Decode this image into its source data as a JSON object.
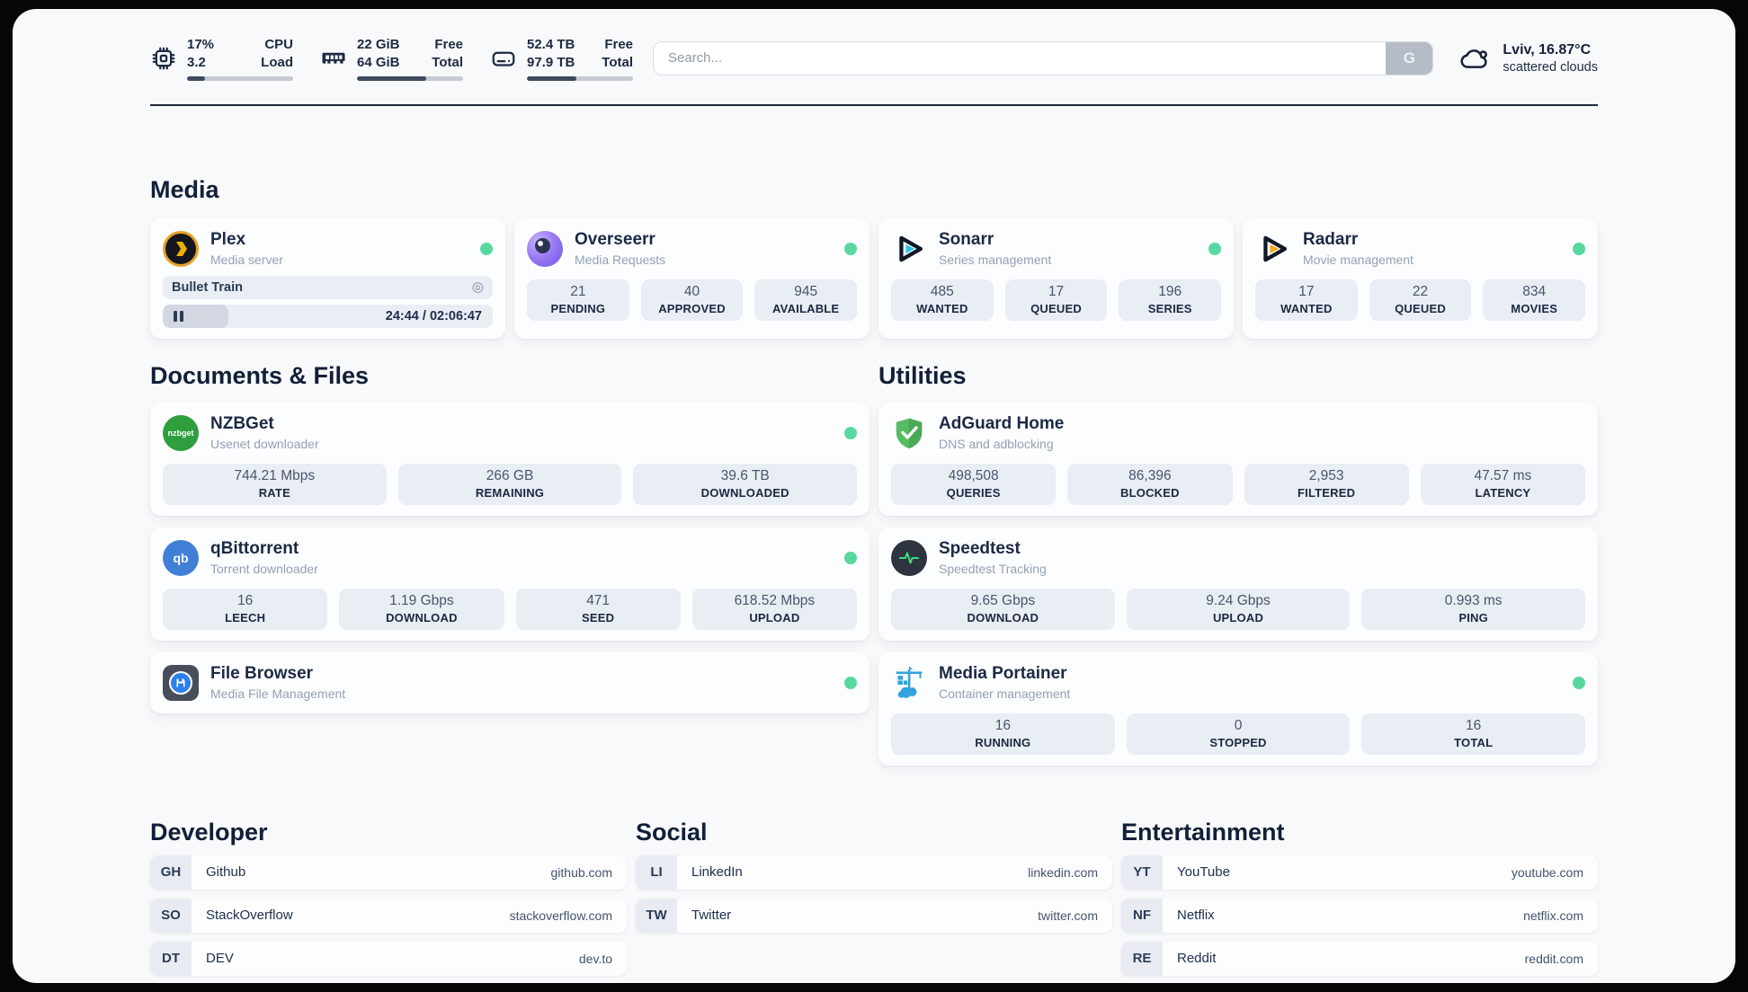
{
  "colors": {
    "status_green": "#58d89e",
    "bar_fill": "#3e4a5d",
    "plex_yellow": "#ebaf00",
    "plex_ring": "#e8a22a",
    "overseerr_purple": "#8b6cf0",
    "sonarr_cyan": "#29c5ea",
    "radarr_amber": "#f5a623",
    "nzbget_green": "#2e9e3f",
    "qbittorrent_blue": "#3f7fd6",
    "adguard_green": "#5cb85c",
    "speedtest_pulse": "#3ddc84",
    "filebrowser_blue": "#2f80ed",
    "portainer_blue": "#34a3dd"
  },
  "header": {
    "cpu": {
      "value1": "17%",
      "value2": "3.2",
      "label1": "CPU",
      "label2": "Load",
      "progress": 17
    },
    "memory": {
      "value1": "22 GiB",
      "value2": "64 GiB",
      "label1": "Free",
      "label2": "Total",
      "progress": 65
    },
    "disk": {
      "value1": "52.4 TB",
      "value2": "97.9 TB",
      "label1": "Free",
      "label2": "Total",
      "progress": 47
    },
    "search": {
      "placeholder": "Search...",
      "button_label": "G"
    },
    "weather": {
      "location_temp": "Lviv, 16.87°C",
      "condition": "scattered clouds"
    }
  },
  "sections": {
    "media": {
      "title": "Media",
      "plex": {
        "title": "Plex",
        "subtitle": "Media server",
        "now_playing": "Bullet Train",
        "session_icon": "◎",
        "time": "24:44 / 02:06:47",
        "progress": 20
      },
      "overseerr": {
        "title": "Overseerr",
        "subtitle": "Media Requests",
        "stats": [
          {
            "value": "21",
            "label": "PENDING"
          },
          {
            "value": "40",
            "label": "APPROVED"
          },
          {
            "value": "945",
            "label": "AVAILABLE"
          }
        ]
      },
      "sonarr": {
        "title": "Sonarr",
        "subtitle": "Series management",
        "stats": [
          {
            "value": "485",
            "label": "WANTED"
          },
          {
            "value": "17",
            "label": "QUEUED"
          },
          {
            "value": "196",
            "label": "SERIES"
          }
        ]
      },
      "radarr": {
        "title": "Radarr",
        "subtitle": "Movie management",
        "stats": [
          {
            "value": "17",
            "label": "WANTED"
          },
          {
            "value": "22",
            "label": "QUEUED"
          },
          {
            "value": "834",
            "label": "MOVIES"
          }
        ]
      }
    },
    "documents": {
      "title": "Documents & Files",
      "nzbget": {
        "title": "NZBGet",
        "subtitle": "Usenet downloader",
        "icon_text": "nzbget",
        "stats": [
          {
            "value": "744.21 Mbps",
            "label": "RATE"
          },
          {
            "value": "266 GB",
            "label": "REMAINING"
          },
          {
            "value": "39.6 TB",
            "label": "DOWNLOADED"
          }
        ]
      },
      "qbittorrent": {
        "title": "qBittorrent",
        "subtitle": "Torrent downloader",
        "icon_text": "qb",
        "stats": [
          {
            "value": "16",
            "label": "LEECH"
          },
          {
            "value": "1.19 Gbps",
            "label": "DOWNLOAD"
          },
          {
            "value": "471",
            "label": "SEED"
          },
          {
            "value": "618.52 Mbps",
            "label": "UPLOAD"
          }
        ]
      },
      "filebrowser": {
        "title": "File Browser",
        "subtitle": "Media File Management"
      }
    },
    "utilities": {
      "title": "Utilities",
      "adguard": {
        "title": "AdGuard Home",
        "subtitle": "DNS and adblocking",
        "stats": [
          {
            "value": "498,508",
            "label": "QUERIES"
          },
          {
            "value": "86,396",
            "label": "BLOCKED"
          },
          {
            "value": "2,953",
            "label": "FILTERED"
          },
          {
            "value": "47.57 ms",
            "label": "LATENCY"
          }
        ]
      },
      "speedtest": {
        "title": "Speedtest",
        "subtitle": "Speedtest Tracking",
        "stats": [
          {
            "value": "9.65 Gbps",
            "label": "DOWNLOAD"
          },
          {
            "value": "9.24 Gbps",
            "label": "UPLOAD"
          },
          {
            "value": "0.993 ms",
            "label": "PING"
          }
        ]
      },
      "portainer": {
        "title": "Media Portainer",
        "subtitle": "Container management",
        "stats": [
          {
            "value": "16",
            "label": "RUNNING"
          },
          {
            "value": "0",
            "label": "STOPPED"
          },
          {
            "value": "16",
            "label": "TOTAL"
          }
        ]
      }
    },
    "developer": {
      "title": "Developer",
      "links": [
        {
          "abbr": "GH",
          "name": "Github",
          "url": "github.com"
        },
        {
          "abbr": "SO",
          "name": "StackOverflow",
          "url": "stackoverflow.com"
        },
        {
          "abbr": "DT",
          "name": "DEV",
          "url": "dev.to"
        }
      ]
    },
    "social": {
      "title": "Social",
      "links": [
        {
          "abbr": "LI",
          "name": "LinkedIn",
          "url": "linkedin.com"
        },
        {
          "abbr": "TW",
          "name": "Twitter",
          "url": "twitter.com"
        }
      ]
    },
    "entertainment": {
      "title": "Entertainment",
      "links": [
        {
          "abbr": "YT",
          "name": "YouTube",
          "url": "youtube.com"
        },
        {
          "abbr": "NF",
          "name": "Netflix",
          "url": "netflix.com"
        },
        {
          "abbr": "RE",
          "name": "Reddit",
          "url": "reddit.com"
        }
      ]
    }
  }
}
